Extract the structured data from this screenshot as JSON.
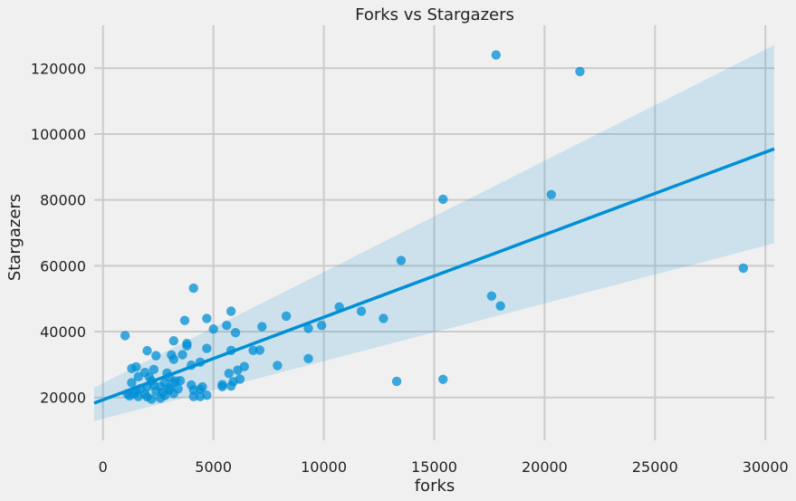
{
  "chart_data": {
    "type": "scatter",
    "title": "Forks vs Stargazers",
    "xlabel": "forks",
    "ylabel": "Stargazers",
    "xlim": [
      -400,
      30400
    ],
    "ylim": [
      7000,
      133000
    ],
    "xticks": [
      0,
      5000,
      10000,
      15000,
      20000,
      25000,
      30000
    ],
    "yticks": [
      20000,
      40000,
      60000,
      80000,
      100000,
      120000
    ],
    "grid": true,
    "colors": {
      "points": "#008fd5",
      "line": "#008fd5",
      "band": "#008fd5",
      "background": "#f0f0f0",
      "grid": "#cbcbcb"
    },
    "regression": {
      "x": [
        -400,
        30400
      ],
      "y": [
        18300,
        95500
      ],
      "ci_upper": [
        23000,
        127000
      ],
      "ci_lower": [
        12800,
        66800
      ]
    },
    "points": [
      [
        17800,
        124000
      ],
      [
        21600,
        119000
      ],
      [
        15400,
        80200
      ],
      [
        20300,
        81600
      ],
      [
        13500,
        61600
      ],
      [
        29000,
        59300
      ],
      [
        17600,
        50800
      ],
      [
        18000,
        47800
      ],
      [
        4100,
        53200
      ],
      [
        10700,
        47500
      ],
      [
        11700,
        46200
      ],
      [
        12700,
        44000
      ],
      [
        8300,
        44700
      ],
      [
        9300,
        41000
      ],
      [
        9900,
        41900
      ],
      [
        15400,
        25500
      ],
      [
        13300,
        24900
      ],
      [
        9300,
        31800
      ],
      [
        7900,
        29700
      ],
      [
        5800,
        46200
      ],
      [
        4700,
        44000
      ],
      [
        3700,
        43400
      ],
      [
        5000,
        40800
      ],
      [
        5600,
        41900
      ],
      [
        6000,
        39700
      ],
      [
        7200,
        41500
      ],
      [
        6800,
        34300
      ],
      [
        7100,
        34400
      ],
      [
        5800,
        34300
      ],
      [
        4700,
        34900
      ],
      [
        3800,
        36400
      ],
      [
        3800,
        35700
      ],
      [
        3200,
        37200
      ],
      [
        3600,
        33000
      ],
      [
        3100,
        32900
      ],
      [
        3200,
        31600
      ],
      [
        2000,
        34200
      ],
      [
        2400,
        32700
      ],
      [
        1000,
        38800
      ],
      [
        1500,
        29300
      ],
      [
        1300,
        28800
      ],
      [
        1900,
        27600
      ],
      [
        2300,
        28500
      ],
      [
        2900,
        27400
      ],
      [
        2100,
        26200
      ],
      [
        1600,
        26300
      ],
      [
        1300,
        24500
      ],
      [
        2200,
        25000
      ],
      [
        3000,
        26200
      ],
      [
        3300,
        25000
      ],
      [
        4000,
        29800
      ],
      [
        4400,
        30700
      ],
      [
        5700,
        27300
      ],
      [
        6100,
        28300
      ],
      [
        6400,
        29400
      ],
      [
        6200,
        25600
      ],
      [
        5900,
        24800
      ],
      [
        5400,
        23900
      ],
      [
        5800,
        23500
      ],
      [
        5400,
        23300
      ],
      [
        4000,
        23800
      ],
      [
        4100,
        22300
      ],
      [
        4400,
        22500
      ],
      [
        4500,
        23200
      ],
      [
        4700,
        20700
      ],
      [
        4100,
        20300
      ],
      [
        4400,
        20300
      ],
      [
        3400,
        22600
      ],
      [
        3200,
        21200
      ],
      [
        3000,
        22900
      ],
      [
        2800,
        24500
      ],
      [
        2600,
        23300
      ],
      [
        2300,
        23700
      ],
      [
        2000,
        23200
      ],
      [
        1700,
        22700
      ],
      [
        1500,
        22100
      ],
      [
        1100,
        21100
      ],
      [
        1200,
        20500
      ],
      [
        1400,
        21100
      ],
      [
        1600,
        20300
      ],
      [
        1900,
        21000
      ],
      [
        2000,
        20200
      ],
      [
        2200,
        19500
      ],
      [
        2600,
        19800
      ],
      [
        2800,
        20600
      ],
      [
        2700,
        21500
      ],
      [
        3000,
        22300
      ],
      [
        3200,
        24500
      ],
      [
        3500,
        25100
      ],
      [
        2400,
        21900
      ]
    ]
  }
}
